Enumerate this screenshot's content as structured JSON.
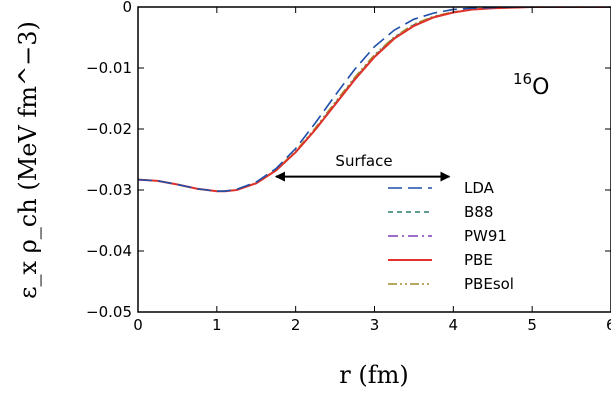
{
  "chart_data": {
    "type": "line",
    "xlabel": "r (fm)",
    "ylabel": "ε_x ρ_ch (MeV fm^−3)",
    "xlim": [
      0,
      6
    ],
    "ylim": [
      -0.05,
      0
    ],
    "xticks": [
      {
        "value": 0,
        "label": "0"
      },
      {
        "value": 1,
        "label": "1"
      },
      {
        "value": 2,
        "label": "2"
      },
      {
        "value": 3,
        "label": "3"
      },
      {
        "value": 4,
        "label": "4"
      },
      {
        "value": 5,
        "label": "5"
      },
      {
        "value": 6,
        "label": "6"
      }
    ],
    "yticks": [
      {
        "value": 0,
        "label": "0"
      },
      {
        "value": -0.01,
        "label": "−0.01"
      },
      {
        "value": -0.02,
        "label": "−0.02"
      },
      {
        "value": -0.03,
        "label": "−0.03"
      },
      {
        "value": -0.04,
        "label": "−0.04"
      },
      {
        "value": -0.05,
        "label": "−0.05"
      }
    ],
    "grid": false,
    "legend_position": "lower-right",
    "annotations": {
      "nucleus": {
        "mass_number": "16",
        "symbol": "O"
      },
      "surface": {
        "text": "Surface",
        "x_from": 1.75,
        "x_to": 3.95,
        "y": -0.0278
      }
    },
    "series": [
      {
        "name": "LDA",
        "color": "#1f4fa8",
        "dash": "long-dash",
        "x": [
          0,
          0.25,
          0.5,
          0.75,
          1.0,
          1.1,
          1.25,
          1.5,
          1.75,
          2.0,
          2.25,
          2.5,
          2.75,
          3.0,
          3.25,
          3.5,
          3.75,
          4.0,
          4.25,
          4.5,
          4.75,
          5.0,
          5.5,
          6.0
        ],
        "y": [
          -0.0283,
          -0.0285,
          -0.0291,
          -0.0298,
          -0.0302,
          -0.0302,
          -0.0299,
          -0.0287,
          -0.0265,
          -0.0232,
          -0.019,
          -0.0145,
          -0.0102,
          -0.0065,
          -0.0038,
          -0.002,
          -0.001,
          -0.0004,
          -0.0002,
          -0.0001,
          0.0,
          0.0,
          0.0,
          0.0
        ]
      },
      {
        "name": "B88",
        "color": "#2e7a6a",
        "dash": "short-dash",
        "x": [
          0,
          0.25,
          0.5,
          0.75,
          1.0,
          1.1,
          1.25,
          1.5,
          1.75,
          2.0,
          2.25,
          2.5,
          2.75,
          3.0,
          3.25,
          3.5,
          3.75,
          4.0,
          4.25,
          4.5,
          4.75,
          5.0,
          5.5,
          6.0
        ],
        "y": [
          -0.0283,
          -0.0285,
          -0.0291,
          -0.0298,
          -0.0302,
          -0.0302,
          -0.03,
          -0.0289,
          -0.0268,
          -0.0238,
          -0.02,
          -0.0158,
          -0.0117,
          -0.008,
          -0.005,
          -0.0029,
          -0.0016,
          -0.0008,
          -0.0004,
          -0.0002,
          -0.0001,
          0.0,
          0.0,
          0.0
        ]
      },
      {
        "name": "PW91",
        "color": "#7b3fb5",
        "dash": "dash-dot",
        "x": [
          0,
          0.25,
          0.5,
          0.75,
          1.0,
          1.1,
          1.25,
          1.5,
          1.75,
          2.0,
          2.25,
          2.5,
          2.75,
          3.0,
          3.25,
          3.5,
          3.75,
          4.0,
          4.25,
          4.5,
          4.75,
          5.0,
          5.5,
          6.0
        ],
        "y": [
          -0.0283,
          -0.0285,
          -0.0291,
          -0.0298,
          -0.0302,
          -0.0302,
          -0.03,
          -0.0289,
          -0.0268,
          -0.0238,
          -0.0201,
          -0.0159,
          -0.0118,
          -0.0081,
          -0.0051,
          -0.003,
          -0.0017,
          -0.0009,
          -0.0004,
          -0.0002,
          -0.0001,
          0.0,
          0.0,
          0.0
        ]
      },
      {
        "name": "PBE",
        "color": "#e0312a",
        "dash": "solid",
        "x": [
          0,
          0.25,
          0.5,
          0.75,
          1.0,
          1.1,
          1.25,
          1.5,
          1.75,
          2.0,
          2.25,
          2.5,
          2.75,
          3.0,
          3.25,
          3.5,
          3.75,
          4.0,
          4.25,
          4.5,
          4.75,
          5.0,
          5.5,
          6.0
        ],
        "y": [
          -0.0283,
          -0.0285,
          -0.0291,
          -0.0298,
          -0.0302,
          -0.0302,
          -0.03,
          -0.0289,
          -0.0268,
          -0.0238,
          -0.0201,
          -0.016,
          -0.0119,
          -0.0082,
          -0.0052,
          -0.0031,
          -0.0017,
          -0.0009,
          -0.0004,
          -0.0002,
          -0.0001,
          0.0,
          0.0,
          0.0
        ]
      },
      {
        "name": "PBEsol",
        "color": "#a08a2a",
        "dash": "dash-dot-dot",
        "x": [
          0,
          0.25,
          0.5,
          0.75,
          1.0,
          1.1,
          1.25,
          1.5,
          1.75,
          2.0,
          2.25,
          2.5,
          2.75,
          3.0,
          3.25,
          3.5,
          3.75,
          4.0,
          4.25,
          4.5,
          4.75,
          5.0,
          5.5,
          6.0
        ],
        "y": [
          -0.0283,
          -0.0285,
          -0.0291,
          -0.0298,
          -0.0302,
          -0.0302,
          -0.03,
          -0.0288,
          -0.0267,
          -0.0236,
          -0.0198,
          -0.0156,
          -0.0115,
          -0.0078,
          -0.0049,
          -0.0028,
          -0.0015,
          -0.0008,
          -0.0004,
          -0.0002,
          -0.0001,
          0.0,
          0.0,
          0.0
        ]
      }
    ]
  }
}
